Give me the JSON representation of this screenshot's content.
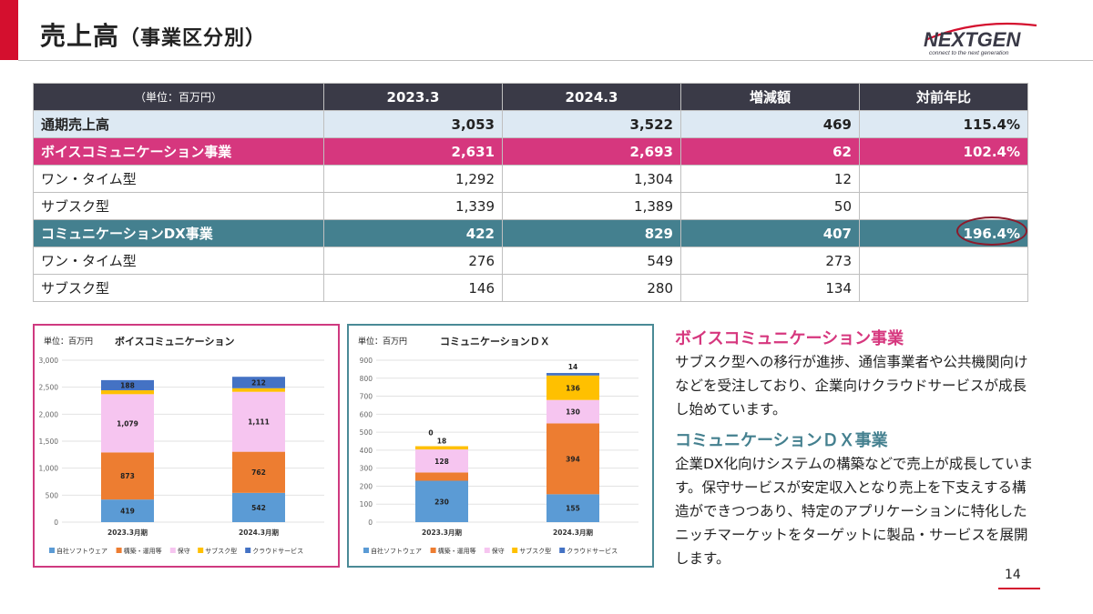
{
  "page": {
    "title": "売上高",
    "title_sub": "（事業区分別）",
    "page_number": "14",
    "logo": {
      "text": "NEXTGEN",
      "tagline": "connect to the next generation",
      "accent": "#d40f2e"
    }
  },
  "table": {
    "header": {
      "unit": "（単位：百万円）",
      "col1": "2023.3",
      "col2": "2024.3",
      "col3": "増減額",
      "col4": "対前年比"
    },
    "rows": [
      {
        "label": "通期売上高",
        "c1": "3,053",
        "c2": "3,522",
        "c3": "469",
        "c4": "115.4%"
      },
      {
        "label": "ボイスコミュニケーション事業",
        "c1": "2,631",
        "c2": "2,693",
        "c3": "62",
        "c4": "102.4%"
      },
      {
        "label": "ワン・タイム型",
        "c1": "1,292",
        "c2": "1,304",
        "c3": "12",
        "c4": ""
      },
      {
        "label": "サブスク型",
        "c1": "1,339",
        "c2": "1,389",
        "c3": "50",
        "c4": ""
      },
      {
        "label": "コミュニケーションDX事業",
        "c1": "422",
        "c2": "829",
        "c3": "407",
        "c4": "196.4%"
      },
      {
        "label": "ワン・タイム型",
        "c1": "276",
        "c2": "549",
        "c3": "273",
        "c4": ""
      },
      {
        "label": "サブスク型",
        "c1": "146",
        "c2": "280",
        "c3": "134",
        "c4": ""
      }
    ]
  },
  "colors": {
    "voice": "#d6377e",
    "dx": "#44808f",
    "header": "#3a3a47",
    "total": "#dde9f3",
    "series": [
      "#5b9bd5",
      "#ed7d31",
      "#f6c5f0",
      "#ffc000",
      "#4472c4"
    ]
  },
  "chart_data": [
    {
      "type": "bar",
      "stacked": true,
      "unit": "単位：百万円",
      "title": "ボイスコミュニケーション",
      "categories": [
        "2023.3月期",
        "2024.3月期"
      ],
      "ylim": [
        0,
        3000
      ],
      "yticks": [
        0,
        500,
        1000,
        1500,
        2000,
        2500,
        3000
      ],
      "ytick_labels": [
        "0",
        "500",
        "1,000",
        "1,500",
        "2,000",
        "2,500",
        "3,000"
      ],
      "series": [
        {
          "name": "自社ソフトウェア",
          "values": [
            419,
            542
          ],
          "labels": [
            "419",
            "542"
          ]
        },
        {
          "name": "構築・運用等",
          "values": [
            873,
            762
          ],
          "labels": [
            "873",
            "762"
          ]
        },
        {
          "name": "保守",
          "values": [
            1079,
            1111
          ],
          "labels": [
            "1,079",
            "1,111"
          ]
        },
        {
          "name": "サブスク型",
          "values": [
            72,
            66
          ],
          "labels": [
            "72",
            "66"
          ]
        },
        {
          "name": "クラウドサービス",
          "values": [
            188,
            212
          ],
          "labels": [
            "188",
            "212"
          ]
        }
      ],
      "legend": "bottom"
    },
    {
      "type": "bar",
      "stacked": true,
      "unit": "単位：百万円",
      "title": "コミュニケーションＤＸ",
      "categories": [
        "2023.3月期",
        "2024.3月期"
      ],
      "ylim": [
        0,
        900
      ],
      "yticks": [
        0,
        100,
        200,
        300,
        400,
        500,
        600,
        700,
        800,
        900
      ],
      "ytick_labels": [
        "0",
        "100",
        "200",
        "300",
        "400",
        "500",
        "600",
        "700",
        "800",
        "900"
      ],
      "series": [
        {
          "name": "自社ソフトウェア",
          "values": [
            230,
            155
          ],
          "labels": [
            "230",
            "155"
          ]
        },
        {
          "name": "構築・運用等",
          "values": [
            46,
            394
          ],
          "labels": [
            "46",
            "394"
          ]
        },
        {
          "name": "保守",
          "values": [
            128,
            130
          ],
          "labels": [
            "128",
            "130"
          ]
        },
        {
          "name": "サブスク型",
          "values": [
            18,
            136
          ],
          "labels": [
            "18",
            "136"
          ]
        },
        {
          "name": "クラウドサービス",
          "values": [
            0,
            14
          ],
          "labels": [
            "0",
            "14"
          ]
        }
      ],
      "legend": "bottom"
    }
  ],
  "text": {
    "voice_heading": "ボイスコミュニケーション事業",
    "voice_body": "サブスク型への移行が進捗、通信事業者や公共機関向けなどを受注しており、企業向けクラウドサービスが成長し始めています。",
    "dx_heading": "コミュニケーションＤＸ事業",
    "dx_body": "企業DX化向けシステムの構築などで売上が成長しています。保守サービスが安定収入となり売上を下支えする構造ができつつあり、特定のアプリケーションに特化したニッチマーケットをターゲットに製品・サービスを展開します。"
  }
}
